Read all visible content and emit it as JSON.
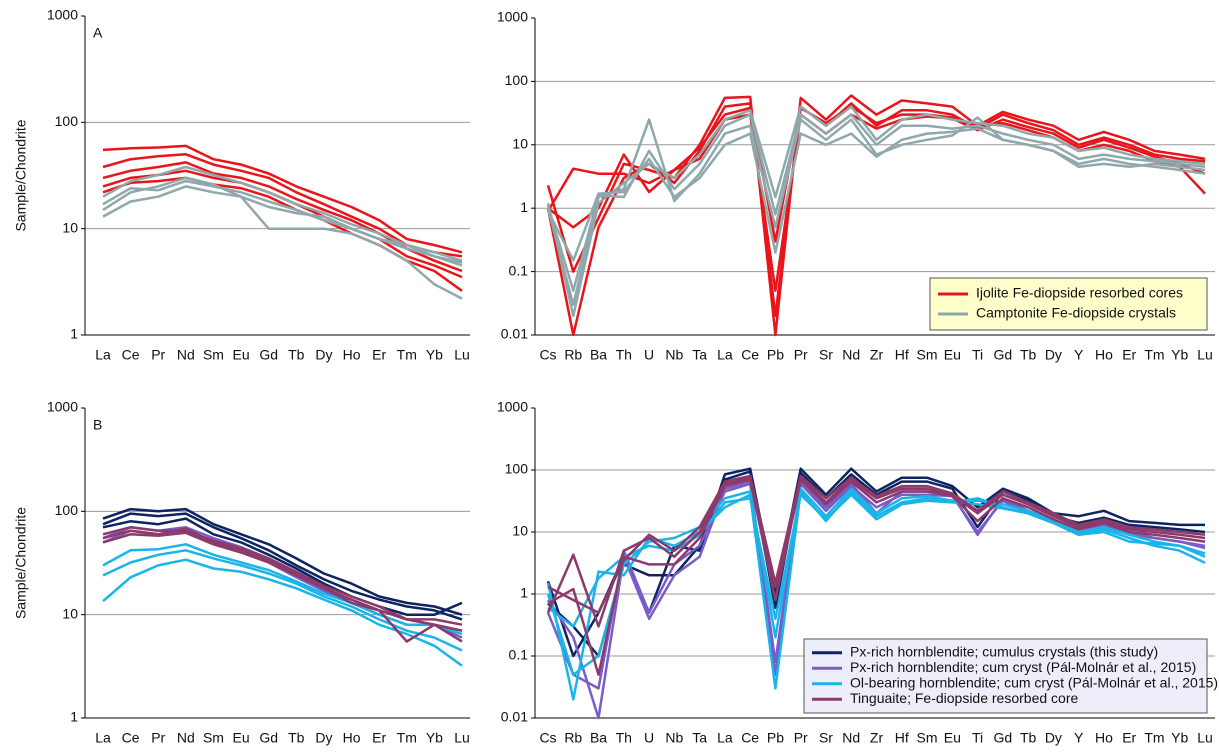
{
  "chart_data": [
    {
      "type": "line",
      "log": true,
      "grid": true,
      "label": "A",
      "ylabel": "Sample/Chondrite",
      "categories": [
        "La",
        "Ce",
        "Pr",
        "Nd",
        "Sm",
        "Eu",
        "Gd",
        "Tb",
        "Dy",
        "Ho",
        "Er",
        "Tm",
        "Yb",
        "Lu"
      ],
      "ylim": [
        1,
        1000
      ],
      "yticks": [
        1,
        10,
        100,
        1000
      ],
      "series": [
        {
          "color": "#e8151b",
          "values": [
            [
              55,
              57,
              58,
              60,
              45,
              40,
              33,
              25,
              20,
              16,
              12,
              8,
              7,
              6
            ],
            [
              38,
              45,
              48,
              50,
              40,
              35,
              30,
              22,
              17,
              13,
              10,
              7,
              6,
              5.5
            ],
            [
              30,
              35,
              38,
              42,
              33,
              30,
              25,
              19,
              15,
              12,
              9,
              6.5,
              5,
              4
            ],
            [
              25,
              30,
              32,
              35,
              30,
              27,
              22,
              17,
              13,
              10,
              8,
              5.5,
              4.5,
              3.5
            ],
            [
              22,
              27,
              28,
              30,
              26,
              24,
              20,
              15,
              12,
              9,
              7,
              5,
              4,
              2.6
            ]
          ]
        },
        {
          "color": "#8fa8ac",
          "values": [
            [
              13,
              18,
              20,
              25,
              22,
              20,
              16,
              14,
              13,
              10,
              8,
              6.5,
              5.5,
              4.5
            ],
            [
              17,
              24,
              23,
              28,
              25,
              22,
              18,
              15,
              12,
              10,
              8,
              7,
              6,
              5
            ],
            [
              15,
              22,
              25,
              30,
              26,
              20,
              10,
              10,
              10,
              9,
              7,
              5,
              3,
              2.2
            ],
            [
              20,
              28,
              32,
              38,
              32,
              27,
              22,
              17,
              14,
              11,
              9,
              7,
              5.5,
              4.8
            ]
          ]
        }
      ]
    },
    {
      "type": "line",
      "log": true,
      "grid": true,
      "legend": "lower right",
      "categories": [
        "Cs",
        "Rb",
        "Ba",
        "Th",
        "U",
        "Nb",
        "Ta",
        "La",
        "Ce",
        "Pb",
        "Pr",
        "Sr",
        "Nd",
        "Zr",
        "Hf",
        "Sm",
        "Eu",
        "Ti",
        "Gd",
        "Tb",
        "Dy",
        "Y",
        "Ho",
        "Er",
        "Tm",
        "Yb",
        "Lu"
      ],
      "ylim": [
        0.01,
        1000
      ],
      "yticks": [
        0.01,
        0.1,
        1,
        10,
        100,
        1000
      ],
      "series": [
        {
          "name": "Ijolite Fe-diopside resorbed cores",
          "color": "#e8151b",
          "values": [
            [
              2.3,
              0.1,
              0.7,
              5,
              4,
              3,
              10,
              55,
              57,
              0.01,
              55,
              25,
              60,
              30,
              50,
              45,
              40,
              20,
              33,
              25,
              20,
              12,
              16,
              12,
              8,
              7,
              6
            ],
            [
              1.0,
              0.01,
              0.5,
              3,
              5,
              2.5,
              8,
              40,
              45,
              0.02,
              40,
              20,
              45,
              20,
              35,
              35,
              30,
              18,
              30,
              22,
              17,
              10,
              13,
              10,
              7,
              6,
              5.5
            ],
            [
              0.9,
              4.2,
              3.5,
              3.5,
              2.5,
              4,
              6,
              25,
              30,
              0.05,
              30,
              15,
              30,
              18,
              25,
              28,
              26,
              17,
              25,
              19,
              15,
              9,
              12,
              9,
              6.5,
              5,
              3.5
            ],
            [
              1.0,
              0.5,
              1.0,
              7,
              1.8,
              4,
              9,
              30,
              38,
              0.3,
              38,
              22,
              40,
              22,
              30,
              30,
              27,
              20,
              22,
              17,
              13,
              8,
              10,
              8,
              5.5,
              4.5,
              1.7
            ]
          ]
        },
        {
          "name": "Camptonite Fe-diopside crystals",
          "color": "#8fa8ac",
          "values": [
            [
              1.0,
              0.03,
              1.5,
              2,
              25,
              1.3,
              3.5,
              15,
              20,
              0.5,
              25,
              12,
              25,
              7,
              10,
              12,
              14,
              27,
              12,
              10,
              8,
              4.5,
              5,
              4.5,
              5,
              4.5,
              4
            ],
            [
              1.1,
              0.05,
              1.6,
              1.5,
              8,
              2,
              5,
              20,
              30,
              0.8,
              30,
              15,
              30,
              10,
              20,
              20,
              18,
              20,
              15,
              12,
              10,
              6,
              7,
              6,
              5.5,
              5,
              4.5
            ],
            [
              1.2,
              0.02,
              1.2,
              2.5,
              5,
              3,
              7,
              25,
              35,
              1.5,
              40,
              20,
              40,
              12,
              25,
              30,
              25,
              22,
              20,
              15,
              13,
              8,
              9,
              7,
              6,
              5.5,
              5
            ],
            [
              0.9,
              0.15,
              1.7,
              1.8,
              6,
              1.5,
              3,
              10,
              15,
              0.2,
              15,
              10,
              15,
              6.5,
              12,
              15,
              16,
              18,
              12,
              10,
              8,
              5,
              6,
              5,
              4.5,
              4,
              3.5
            ]
          ]
        }
      ]
    },
    {
      "type": "line",
      "log": true,
      "grid": true,
      "label": "B",
      "ylabel": "Sample/Chondrite",
      "categories": [
        "La",
        "Ce",
        "Pr",
        "Nd",
        "Sm",
        "Eu",
        "Gd",
        "Tb",
        "Dy",
        "Ho",
        "Er",
        "Tm",
        "Yb",
        "Lu"
      ],
      "ylim": [
        1,
        1000
      ],
      "yticks": [
        1,
        10,
        100,
        1000
      ],
      "series": [
        {
          "color": "#0d2460",
          "values": [
            [
              85,
              105,
              100,
              105,
              75,
              60,
              48,
              35,
              25,
              20,
              15,
              13,
              12,
              10
            ],
            [
              75,
              95,
              90,
              95,
              70,
              55,
              42,
              30,
              22,
              17,
              14,
              12,
              11,
              9
            ],
            [
              70,
              80,
              75,
              85,
              60,
              50,
              38,
              28,
              20,
              15,
              12,
              10,
              10,
              13
            ]
          ]
        },
        {
          "color": "#7a5cc8",
          "values": [
            [
              55,
              70,
              65,
              70,
              55,
              45,
              35,
              25,
              18,
              14,
              11,
              9,
              8,
              7
            ],
            [
              50,
              65,
              60,
              65,
              50,
              42,
              32,
              23,
              17,
              13,
              10,
              8,
              8,
              6
            ]
          ]
        },
        {
          "color": "#1ab4e8",
          "values": [
            [
              13.5,
              23,
              30,
              34,
              28,
              26,
              22,
              18,
              14,
              11,
              8,
              6.5,
              5,
              3.2
            ],
            [
              24,
              32,
              38,
              42,
              35,
              30,
              25,
              20,
              15,
              12,
              9,
              7,
              6,
              4.5
            ],
            [
              30,
              42,
              43,
              48,
              38,
              32,
              27,
              21,
              16,
              13,
              10,
              8,
              8,
              6.5
            ]
          ]
        },
        {
          "color": "#8b3a6b",
          "values": [
            [
              60,
              70,
              65,
              65,
              52,
              44,
              35,
              26,
              19,
              15,
              12,
              9,
              8,
              7
            ],
            [
              50,
              60,
              58,
              62,
              48,
              40,
              32,
              24,
              18,
              13,
              11,
              5.5,
              8,
              5.5
            ],
            [
              55,
              65,
              60,
              68,
              50,
              42,
              33,
              25,
              18,
              14,
              11,
              9,
              9,
              8
            ]
          ]
        }
      ]
    },
    {
      "type": "line",
      "log": true,
      "grid": true,
      "legend": "lower right",
      "categories": [
        "Cs",
        "Rb",
        "Ba",
        "Th",
        "U",
        "Nb",
        "Ta",
        "La",
        "Ce",
        "Pb",
        "Pr",
        "Sr",
        "Nd",
        "Zr",
        "Hf",
        "Sm",
        "Eu",
        "Ti",
        "Gd",
        "Tb",
        "Dy",
        "Y",
        "Ho",
        "Er",
        "Tm",
        "Yb",
        "Lu"
      ],
      "ylim": [
        0.01,
        1000
      ],
      "yticks": [
        0.01,
        0.1,
        1,
        10,
        100,
        1000
      ],
      "series": [
        {
          "name": "Px-rich hornblendite; cumulus crystals (this study)",
          "color": "#0d2460",
          "values": [
            [
              1.6,
              0.1,
              0.5,
              4,
              0.5,
              6,
              5,
              85,
              105,
              1.0,
              105,
              40,
              105,
              45,
              75,
              75,
              55,
              25,
              50,
              35,
              20,
              18,
              22,
              15,
              14,
              13,
              13
            ],
            [
              0.7,
              0.3,
              0.1,
              3,
              2,
              2,
              6,
              70,
              95,
              0.6,
              90,
              35,
              85,
              40,
              65,
              65,
              50,
              12,
              45,
              32,
              18,
              14,
              17,
              13,
              12,
              11,
              10
            ]
          ]
        },
        {
          "name": "Px-rich hornblendite; cum cryst (Pál-Molnár et al., 2015)",
          "color": "#7a5cc8",
          "values": [
            [
              0.8,
              0.2,
              0.01,
              4,
              0.4,
              2,
              4,
              50,
              65,
              0.05,
              65,
              25,
              60,
              20,
              45,
              45,
              40,
              9,
              35,
              22,
              15,
              10,
              13,
              10,
              8,
              7,
              6
            ],
            [
              0.5,
              0.05,
              0.03,
              5,
              0.5,
              3,
              6,
              45,
              60,
              0.08,
              60,
              22,
              55,
              25,
              40,
              40,
              38,
              10,
              32,
              20,
              14,
              9,
              12,
              9,
              8,
              7,
              5.5
            ]
          ]
        },
        {
          "name": "Ol-bearing hornblendite; cum cryst (Pál-Molnár et al., 2015)",
          "color": "#1ab4e8",
          "values": [
            [
              1.5,
              0.02,
              2.3,
              2,
              8,
              6,
              10,
              25,
              40,
              0.03,
              45,
              15,
              45,
              18,
              30,
              35,
              30,
              35,
              25,
              20,
              15,
              9,
              11,
              8,
              6,
              5,
              3.2
            ],
            [
              1.0,
              0.05,
              0.1,
              3,
              7,
              8,
              12,
              35,
              45,
              0.2,
              50,
              18,
              50,
              20,
              35,
              38,
              32,
              32,
              28,
              22,
              16,
              10,
              12,
              9,
              7,
              6,
              4.5
            ],
            [
              0.6,
              0.3,
              1.8,
              4,
              6,
              5,
              9,
              30,
              35,
              0.4,
              40,
              16,
              40,
              16,
              28,
              32,
              30,
              28,
              24,
              20,
              14,
              9,
              10,
              7,
              6.5,
              6,
              4
            ]
          ]
        },
        {
          "name": "Tinguaite; Fe-diopside resorbed core",
          "color": "#8b3a6b",
          "values": [
            [
              0.5,
              4.3,
              0.3,
              5,
              8,
              4,
              10,
              60,
              75,
              1.3,
              75,
              30,
              70,
              35,
              50,
              50,
              40,
              20,
              40,
              28,
              18,
              12,
              15,
              11,
              10,
              9,
              8
            ],
            [
              0.7,
              1.2,
              0.05,
              4,
              3,
              3,
              8,
              55,
              70,
              0.8,
              70,
              28,
              65,
              30,
              45,
              45,
              38,
              15,
              35,
              25,
              16,
              11,
              14,
              10,
              9,
              8,
              7
            ],
            [
              1.3,
              0.8,
              0.5,
              3.5,
              9,
              5,
              12,
              65,
              80,
              1.5,
              80,
              35,
              75,
              38,
              55,
              55,
              42,
              22,
              45,
              30,
              20,
              13,
              16,
              12,
              11,
              10,
              9
            ]
          ]
        }
      ]
    }
  ]
}
